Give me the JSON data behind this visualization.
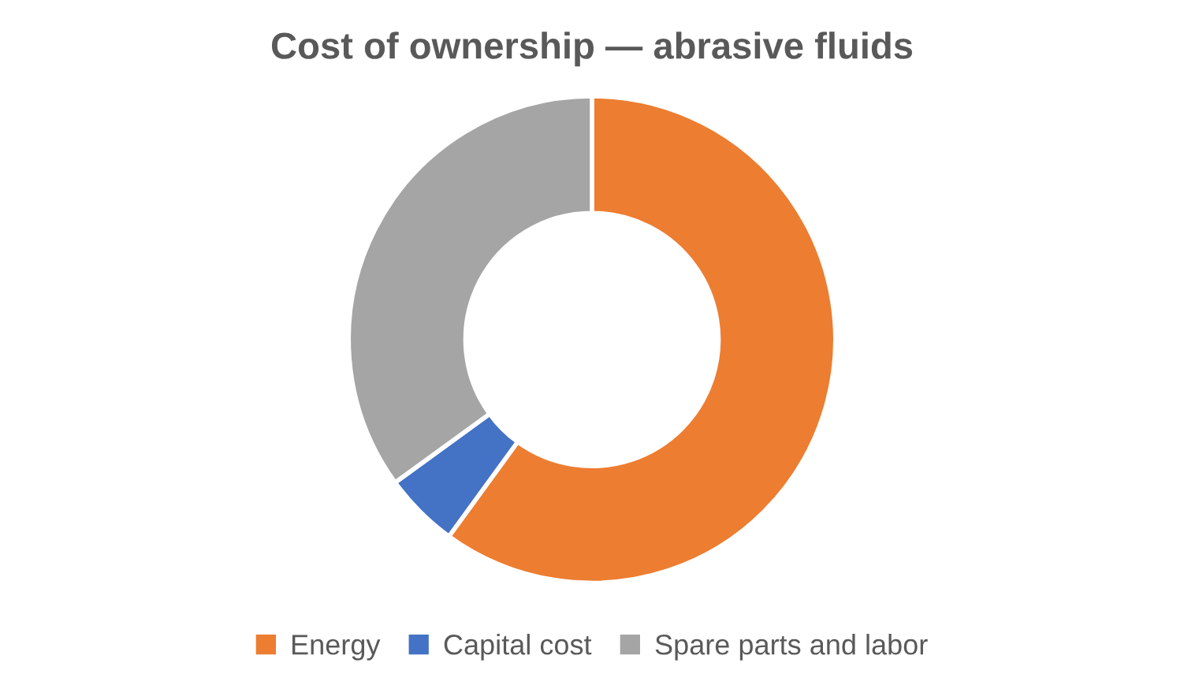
{
  "chart_data": {
    "type": "donut",
    "title": "Cost of ownership — abrasive fluids",
    "categories": [
      "Energy",
      "Capital cost",
      "Spare parts and labor"
    ],
    "values": [
      60,
      5,
      35
    ],
    "colors": [
      "#ed7d31",
      "#4472c4",
      "#a5a5a5"
    ],
    "legend": "bottom"
  }
}
